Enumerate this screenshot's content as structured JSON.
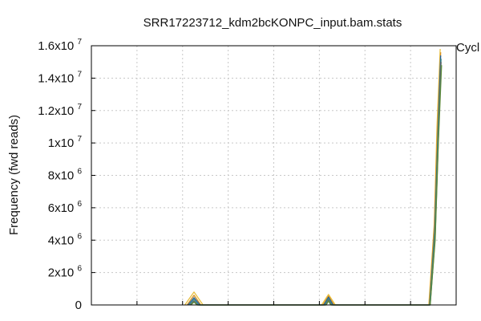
{
  "chart_data": {
    "type": "line",
    "title": "SRR17223712_kdm2bcKONPC_input.bam.stats",
    "ylabel": "Frequency (fwd reads)",
    "xlabel": "",
    "ylim": [
      0,
      16000000
    ],
    "xlim": [
      0,
      8
    ],
    "grid": true,
    "legend_position": "top-right",
    "legend_entries": [
      "Cycl"
    ],
    "y_ticks": [
      {
        "value": 0,
        "base": "0",
        "exp": ""
      },
      {
        "value": 2000000,
        "base": "2x10",
        "exp": "6"
      },
      {
        "value": 4000000,
        "base": "4x10",
        "exp": "6"
      },
      {
        "value": 6000000,
        "base": "6x10",
        "exp": "6"
      },
      {
        "value": 8000000,
        "base": "8x10",
        "exp": "6"
      },
      {
        "value": 10000000,
        "base": "1x10",
        "exp": "7"
      },
      {
        "value": 12000000,
        "base": "1.2x10",
        "exp": "7"
      },
      {
        "value": 14000000,
        "base": "1.4x10",
        "exp": "7"
      },
      {
        "value": 16000000,
        "base": "1.6x10",
        "exp": "7"
      }
    ],
    "x_grid": [
      1,
      2,
      3,
      4,
      5,
      6,
      7
    ],
    "series": [
      {
        "color": "#e8c040",
        "points": [
          [
            2.05,
            0
          ],
          [
            2.25,
            800000
          ],
          [
            2.45,
            0
          ],
          [
            5.05,
            0
          ],
          [
            5.2,
            650000
          ],
          [
            5.35,
            0
          ],
          [
            7.4,
            0
          ],
          [
            7.52,
            5000000
          ],
          [
            7.58,
            11000000
          ],
          [
            7.65,
            15800000
          ]
        ]
      },
      {
        "color": "#d89020",
        "points": [
          [
            2.1,
            0
          ],
          [
            2.25,
            600000
          ],
          [
            2.4,
            0
          ],
          [
            5.08,
            0
          ],
          [
            5.2,
            550000
          ],
          [
            5.32,
            0
          ],
          [
            7.41,
            0
          ],
          [
            7.52,
            4800000
          ],
          [
            7.59,
            10800000
          ],
          [
            7.66,
            15600000
          ]
        ]
      },
      {
        "color": "#2060a0",
        "points": [
          [
            2.12,
            0
          ],
          [
            2.25,
            450000
          ],
          [
            2.38,
            0
          ],
          [
            5.1,
            0
          ],
          [
            5.2,
            480000
          ],
          [
            5.3,
            0
          ],
          [
            7.42,
            0
          ],
          [
            7.53,
            4600000
          ],
          [
            7.6,
            10600000
          ],
          [
            7.66,
            15400000
          ]
        ]
      },
      {
        "color": "#3a8a8a",
        "points": [
          [
            2.15,
            0
          ],
          [
            2.25,
            350000
          ],
          [
            2.35,
            0
          ],
          [
            5.12,
            0
          ],
          [
            5.2,
            400000
          ],
          [
            5.28,
            0
          ],
          [
            7.42,
            0
          ],
          [
            7.53,
            4400000
          ],
          [
            7.6,
            10400000
          ],
          [
            7.67,
            15200000
          ]
        ]
      },
      {
        "color": "#666666",
        "points": [
          [
            2.17,
            0
          ],
          [
            2.25,
            250000
          ],
          [
            2.33,
            0
          ],
          [
            5.14,
            0
          ],
          [
            5.2,
            320000
          ],
          [
            5.26,
            0
          ],
          [
            7.43,
            0
          ],
          [
            7.54,
            4200000
          ],
          [
            7.61,
            10200000
          ],
          [
            7.67,
            15000000
          ]
        ]
      },
      {
        "color": "#5a8a3a",
        "points": [
          [
            2.18,
            0
          ],
          [
            2.25,
            180000
          ],
          [
            2.32,
            0
          ],
          [
            5.15,
            0
          ],
          [
            5.2,
            250000
          ],
          [
            5.25,
            0
          ],
          [
            7.43,
            0
          ],
          [
            7.54,
            4000000
          ],
          [
            7.61,
            10000000
          ],
          [
            7.68,
            14800000
          ]
        ]
      }
    ]
  }
}
